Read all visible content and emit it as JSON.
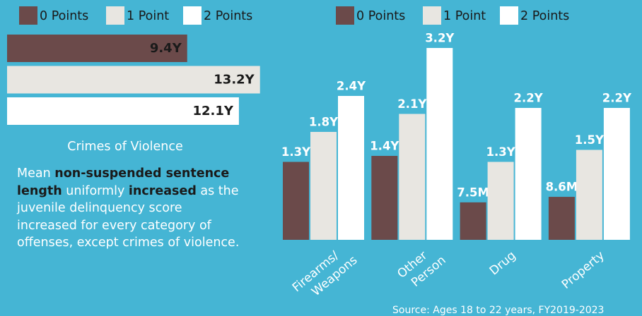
{
  "chart_data": [
    {
      "type": "hbar",
      "legend": [
        "0 Points",
        "1 Point",
        "2 Points"
      ],
      "categories": [
        "Crimes of Violence"
      ],
      "series": [
        {
          "name": "0 Points",
          "color": "#6b4a4a",
          "values": [
            9.4
          ],
          "value_labels": [
            "9.4Y"
          ]
        },
        {
          "name": "1 Point",
          "color": "#e8e6e1",
          "values": [
            13.2
          ],
          "value_labels": [
            "13.2Y"
          ]
        },
        {
          "name": "2 Points",
          "color": "#ffffff",
          "values": [
            12.1
          ],
          "value_labels": [
            "12.1Y"
          ]
        }
      ]
    },
    {
      "type": "bar",
      "categories": [
        [
          "Firearms/",
          "Weapons"
        ],
        [
          "Other",
          "Person"
        ],
        [
          "Drug"
        ],
        [
          "Property"
        ]
      ],
      "series": [
        {
          "name": "0 Points",
          "color": "#6b4a4a",
          "values": [
            1.3,
            1.4,
            0.625,
            0.7167
          ],
          "value_labels": [
            "1.3Y",
            "1.4Y",
            "7.5M",
            "8.6M"
          ]
        },
        {
          "name": "1 Point",
          "color": "#e8e6e1",
          "values": [
            1.8,
            2.1,
            1.3,
            1.5
          ],
          "value_labels": [
            "1.8Y",
            "2.1Y",
            "1.3Y",
            "1.5Y"
          ]
        },
        {
          "name": "2 Points",
          "color": "#ffffff",
          "values": [
            2.4,
            3.2,
            2.2,
            2.2
          ],
          "value_labels": [
            "2.4Y",
            "3.2Y",
            "2.2Y",
            "2.2Y"
          ]
        }
      ]
    }
  ],
  "text": [
    {
      "text": "Mean ",
      "bold": false
    },
    {
      "text": "non-suspended sentence length",
      "bold": true
    },
    {
      "text": " uniformly ",
      "bold": false
    },
    {
      "text": "increased",
      "bold": true
    },
    {
      "text": " as the juvenile delinquency score increased for every category of offenses, except crimes of violence.",
      "bold": false
    }
  ],
  "source": "Source: Ages 18 to 22 years, FY2019-2023"
}
